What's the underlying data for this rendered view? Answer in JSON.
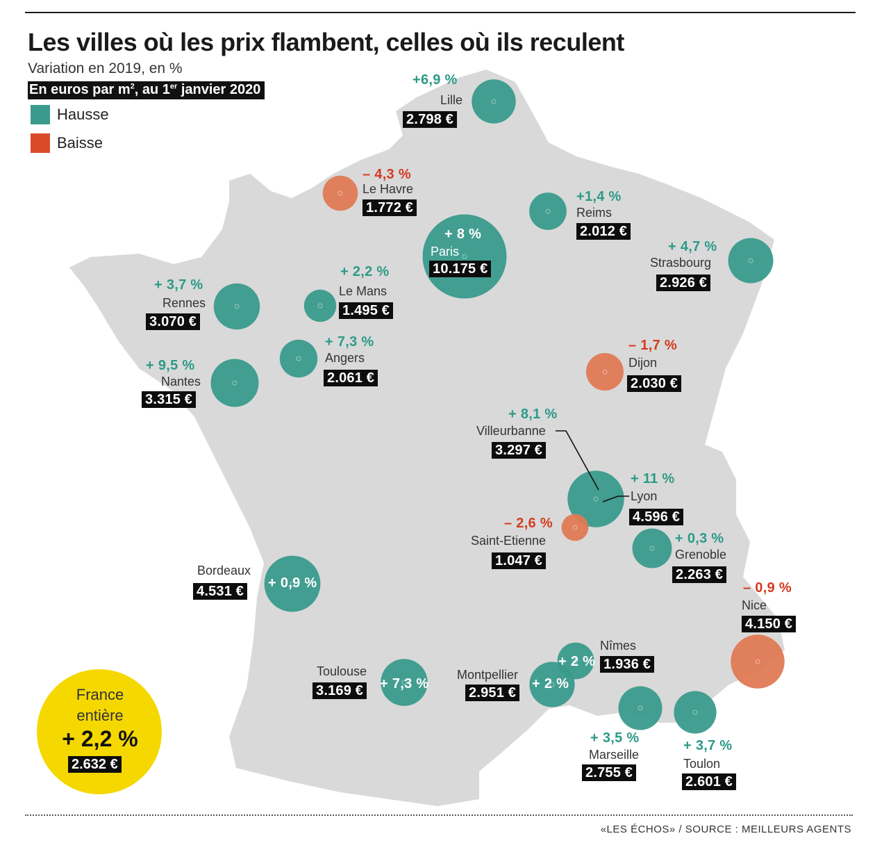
{
  "title": "Les villes où les prix flambent, celles où ils reculent",
  "subtitle": "Variation en 2019, en %",
  "unit_label": {
    "pre": "En euros par m",
    "sup1": "2",
    "mid": ", au 1",
    "sup2": "er",
    "post": " janvier 2020"
  },
  "legend": {
    "hausse": {
      "label": "Hausse",
      "color": "#3a9b8c"
    },
    "baisse": {
      "label": "Baisse",
      "color": "#d94a2b"
    }
  },
  "colors": {
    "map": "#d9d9d9",
    "rise_bubble": "#3a9b8c",
    "fall_bubble": "#e07a55",
    "national": "#f5d800"
  },
  "cities": {
    "lille": {
      "name": "Lille",
      "change": "+6,9 %",
      "change_pct": 6.9,
      "price": "2.798 €",
      "price_eur": 2798,
      "trend": "up"
    },
    "le_havre": {
      "name": "Le Havre",
      "change": "– 4,3 %",
      "change_pct": -4.3,
      "price": "1.772 €",
      "price_eur": 1772,
      "trend": "down"
    },
    "reims": {
      "name": "Reims",
      "change": "+1,4 %",
      "change_pct": 1.4,
      "price": "2.012 €",
      "price_eur": 2012,
      "trend": "up"
    },
    "paris": {
      "name": "Paris",
      "change": "+ 8 %",
      "change_pct": 8,
      "price": "10.175 €",
      "price_eur": 10175,
      "trend": "up"
    },
    "strasbourg": {
      "name": "Strasbourg",
      "change": "+ 4,7 %",
      "change_pct": 4.7,
      "price": "2.926 €",
      "price_eur": 2926,
      "trend": "up"
    },
    "rennes": {
      "name": "Rennes",
      "change": "+ 3,7 %",
      "change_pct": 3.7,
      "price": "3.070 €",
      "price_eur": 3070,
      "trend": "up"
    },
    "le_mans": {
      "name": "Le Mans",
      "change": "+ 2,2 %",
      "change_pct": 2.2,
      "price": "1.495 €",
      "price_eur": 1495,
      "trend": "up"
    },
    "angers": {
      "name": "Angers",
      "change": "+ 7,3 %",
      "change_pct": 7.3,
      "price": "2.061 €",
      "price_eur": 2061,
      "trend": "up"
    },
    "nantes": {
      "name": "Nantes",
      "change": "+ 9,5 %",
      "change_pct": 9.5,
      "price": "3.315 €",
      "price_eur": 3315,
      "trend": "up"
    },
    "dijon": {
      "name": "Dijon",
      "change": "– 1,7 %",
      "change_pct": -1.7,
      "price": "2.030 €",
      "price_eur": 2030,
      "trend": "down"
    },
    "villeurbanne": {
      "name": "Villeurbanne",
      "change": "+ 8,1 %",
      "change_pct": 8.1,
      "price": "3.297 €",
      "price_eur": 3297,
      "trend": "up"
    },
    "lyon": {
      "name": "Lyon",
      "change": "+ 11 %",
      "change_pct": 11,
      "price": "4.596 €",
      "price_eur": 4596,
      "trend": "up"
    },
    "saint_etienne": {
      "name": "Saint-Etienne",
      "change": "– 2,6 %",
      "change_pct": -2.6,
      "price": "1.047 €",
      "price_eur": 1047,
      "trend": "down"
    },
    "grenoble": {
      "name": "Grenoble",
      "change": "+ 0,3 %",
      "change_pct": 0.3,
      "price": "2.263 €",
      "price_eur": 2263,
      "trend": "up"
    },
    "bordeaux": {
      "name": "Bordeaux",
      "change": "+ 0,9 %",
      "change_pct": 0.9,
      "price": "4.531 €",
      "price_eur": 4531,
      "trend": "up"
    },
    "nice": {
      "name": "Nice",
      "change": "– 0,9 %",
      "change_pct": -0.9,
      "price": "4.150 €",
      "price_eur": 4150,
      "trend": "down"
    },
    "nimes": {
      "name": "Nîmes",
      "change": "+ 2 %",
      "change_pct": 2,
      "price": "1.936 €",
      "price_eur": 1936,
      "trend": "up"
    },
    "toulouse": {
      "name": "Toulouse",
      "change": "+ 7,3 %",
      "change_pct": 7.3,
      "price": "3.169 €",
      "price_eur": 3169,
      "trend": "up"
    },
    "montpellier": {
      "name": "Montpellier",
      "change": "+ 2 %",
      "change_pct": 2,
      "price": "2.951 €",
      "price_eur": 2951,
      "trend": "up"
    },
    "marseille": {
      "name": "Marseille",
      "change": "+ 3,5 %",
      "change_pct": 3.5,
      "price": "2.755 €",
      "price_eur": 2755,
      "trend": "up"
    },
    "toulon": {
      "name": "Toulon",
      "change": "+ 3,7 %",
      "change_pct": 3.7,
      "price": "2.601 €",
      "price_eur": 2601,
      "trend": "up"
    }
  },
  "national": {
    "line1": "France",
    "line2": "entière",
    "change": "+ 2,2 %",
    "change_pct": 2.2,
    "price": "2.632 €",
    "price_eur": 2632
  },
  "source": "«LES ÉCHOS» / SOURCE : MEILLEURS AGENTS"
}
